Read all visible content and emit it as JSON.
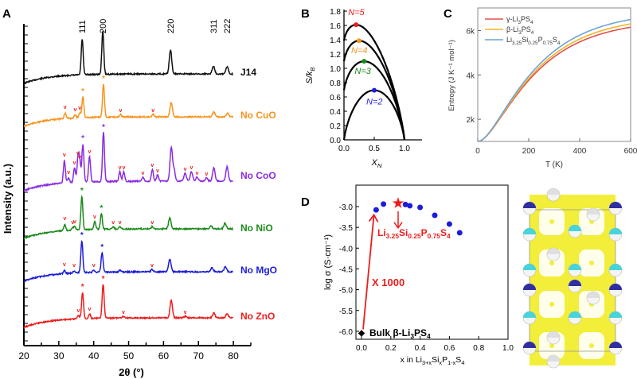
{
  "colors": {
    "black": "#111111",
    "orange": "#f7941d",
    "purple": "#8a2be2",
    "green": "#1a8a1a",
    "blue": "#1c1cdc",
    "red": "#ee1c1c",
    "yellow": "#f2ee3a",
    "cyan": "#35d0d8",
    "cBlue": "#6fa3d8",
    "cOrange": "#f0b429",
    "cRed": "#e0504a"
  },
  "chart_data": [
    {
      "panel": "A",
      "type": "line",
      "xlabel": "2θ (°)",
      "ylabel": "Intensity (a.u.)",
      "xlim": [
        20,
        85
      ],
      "xticks": [
        "20",
        "30",
        "40",
        "50",
        "60",
        "70",
        "80"
      ],
      "peak_indices": [
        {
          "label": "111",
          "x": 36.7
        },
        {
          "label": "200",
          "x": 42.6
        },
        {
          "label": "220",
          "x": 62.0
        },
        {
          "label": "311",
          "x": 74.3
        },
        {
          "label": "222",
          "x": 78.2
        }
      ],
      "series": [
        {
          "name": "J14",
          "color": "#111111",
          "peaks": [
            [
              36.7,
              45
            ],
            [
              42.6,
              55
            ],
            [
              62.0,
              30
            ],
            [
              74.3,
              10
            ],
            [
              78.2,
              9
            ]
          ],
          "impurity": [],
          "stars": []
        },
        {
          "name": "No CuO",
          "color": "#f7941d",
          "peaks": [
            [
              31.8,
              7
            ],
            [
              34.7,
              4
            ],
            [
              36.0,
              6
            ],
            [
              36.9,
              26
            ],
            [
              42.8,
              42
            ],
            [
              47.7,
              3
            ],
            [
              57.0,
              3
            ],
            [
              62.2,
              18
            ],
            [
              74.4,
              6
            ],
            [
              78.3,
              5
            ]
          ],
          "impurity": [
            31.8,
            34.7,
            36.0,
            47.7,
            57.0
          ],
          "stars": [
            36.9,
            42.8
          ]
        },
        {
          "name": "No CoO",
          "color": "#8a2be2",
          "peaks": [
            [
              31.6,
              28
            ],
            [
              32.8,
              6
            ],
            [
              34.5,
              18
            ],
            [
              35.5,
              30
            ],
            [
              36.0,
              25
            ],
            [
              36.9,
              48
            ],
            [
              38.8,
              32
            ],
            [
              42.8,
              62
            ],
            [
              47.5,
              12
            ],
            [
              48.6,
              12
            ],
            [
              54.1,
              5
            ],
            [
              56.8,
              15
            ],
            [
              58.3,
              8
            ],
            [
              62.2,
              42
            ],
            [
              63.0,
              14
            ],
            [
              66.2,
              10
            ],
            [
              68.0,
              12
            ],
            [
              69.6,
              5
            ],
            [
              72.3,
              4
            ],
            [
              74.4,
              17
            ],
            [
              78.2,
              18
            ]
          ],
          "impurity": [
            31.6,
            32.8,
            34.5,
            35.5,
            36.0,
            38.8,
            47.5,
            48.6,
            54.1,
            56.8,
            58.3,
            66.2,
            68.0,
            69.6,
            72.3
          ],
          "stars": [
            36.9,
            42.8
          ]
        },
        {
          "name": "No NiO",
          "color": "#1a8a1a",
          "peaks": [
            [
              31.7,
              8
            ],
            [
              34.0,
              3
            ],
            [
              34.6,
              4
            ],
            [
              36.6,
              42
            ],
            [
              40.3,
              10
            ],
            [
              42.2,
              20
            ],
            [
              45.6,
              3
            ],
            [
              47.5,
              3
            ],
            [
              56.8,
              3
            ],
            [
              61.8,
              14
            ],
            [
              73.6,
              4
            ],
            [
              77.6,
              7
            ]
          ],
          "impurity": [
            31.7,
            34.0,
            34.6,
            40.3,
            45.6,
            47.5,
            56.8
          ],
          "stars": [
            36.6,
            42.2
          ]
        },
        {
          "name": "No MgO",
          "color": "#1c1cdc",
          "peaks": [
            [
              31.6,
              4
            ],
            [
              34.4,
              3
            ],
            [
              36.6,
              40
            ],
            [
              40.0,
              3
            ],
            [
              42.4,
              25
            ],
            [
              47.5,
              2
            ],
            [
              56.7,
              3
            ],
            [
              61.8,
              16
            ],
            [
              73.9,
              5
            ],
            [
              77.7,
              6
            ]
          ],
          "impurity": [
            31.6,
            34.4,
            40.0,
            56.7
          ],
          "stars": [
            36.6,
            42.4
          ]
        },
        {
          "name": "No ZnO",
          "color": "#ee1c1c",
          "peaks": [
            [
              35.6,
              4
            ],
            [
              36.8,
              33
            ],
            [
              38.8,
              6
            ],
            [
              42.7,
              43
            ],
            [
              48.5,
              2
            ],
            [
              62.2,
              22
            ],
            [
              66.2,
              2
            ],
            [
              74.4,
              6
            ],
            [
              78.2,
              5
            ]
          ],
          "impurity": [
            35.6,
            38.8,
            48.5,
            66.2
          ],
          "stars": [
            36.8,
            42.7
          ]
        }
      ]
    },
    {
      "panel": "B",
      "type": "line",
      "xlabel": "X",
      "xlabel_sub": "N",
      "ylabel": "S/k",
      "ylabel_sub": "B",
      "xlim": [
        0,
        1.25
      ],
      "ylim": [
        0,
        1.8
      ],
      "xticks": [
        "0.0",
        "0.5",
        "1.0"
      ],
      "yticks": [
        "0.0",
        "0.2",
        "0.4",
        "0.6",
        "0.8",
        "1.0",
        "1.2",
        "1.4",
        "1.6",
        "1.8"
      ],
      "series": [
        {
          "name": "N=5",
          "N": 5,
          "color": "#ee1c1c"
        },
        {
          "name": "N=4",
          "N": 4,
          "color": "#f7941d"
        },
        {
          "name": "N=3",
          "N": 3,
          "color": "#1a8a1a"
        },
        {
          "name": "N=2",
          "N": 2,
          "color": "#1c1cdc"
        }
      ]
    },
    {
      "panel": "C",
      "type": "line",
      "xlabel": "T (K)",
      "ylabel": "Entropy (J K⁻¹ mol⁻¹)",
      "xlim": [
        0,
        600
      ],
      "ylim": [
        1000,
        7000
      ],
      "xticks": [
        "0",
        "200",
        "400",
        "600"
      ],
      "yticks": [
        "2k",
        "4k",
        "6k"
      ],
      "legend_position": "top-left",
      "series": [
        {
          "name": "γ-Li3PS4",
          "parts": [
            "γ-Li",
            "3",
            "PS",
            "4"
          ],
          "color": "#e0504a",
          "end": 6150
        },
        {
          "name": "β-Li3PS4",
          "parts": [
            "β-Li",
            "3",
            "PS",
            "4"
          ],
          "color": "#f0b429",
          "end": 6300
        },
        {
          "name": "Li3.25Si0.25P0.75S4",
          "parts": [
            "Li",
            "3.25",
            "Si",
            "0.25",
            "P",
            "0.75",
            "S",
            "4"
          ],
          "color": "#6fa3d8",
          "end": 6500
        }
      ]
    },
    {
      "panel": "D",
      "type": "scatter",
      "xlabel": "x in Li3+xSixP1-xS4",
      "xlabel_parts": [
        "x in Li",
        "3+x",
        "Si",
        "x",
        "P",
        "1-x",
        "S",
        "4"
      ],
      "ylabel": "log σ (S·cm⁻¹)",
      "xlim": [
        0,
        1.0
      ],
      "ylim": [
        -6.2,
        -2.7
      ],
      "xticks": [
        "0.0",
        "0.2",
        "0.4",
        "0.6",
        "0.8",
        "1.0"
      ],
      "yticks": [
        "-3.0",
        "-3.5",
        "-4.0",
        "-4.5",
        "-5.0",
        "-5.5",
        "-6.0"
      ],
      "points": [
        [
          0.1,
          -3.08
        ],
        [
          0.15,
          -2.94
        ],
        [
          0.3,
          -2.95
        ],
        [
          0.33,
          -2.98
        ],
        [
          0.4,
          -3.02
        ],
        [
          0.5,
          -3.21
        ],
        [
          0.6,
          -3.42
        ],
        [
          0.67,
          -3.63
        ]
      ],
      "star": [
        0.25,
        -2.92
      ],
      "bulk": [
        0.0,
        -6.05
      ],
      "annotations": {
        "compound_parts": [
          "Li",
          "3.25",
          "Si",
          "0.25",
          "P",
          "0.75",
          "S",
          "4"
        ],
        "factor": "X 1000",
        "bulk_parts": [
          "Bulk β-Li",
          "3",
          "PS",
          "4"
        ]
      }
    }
  ],
  "panel_labels": [
    "A",
    "B",
    "C",
    "D"
  ]
}
